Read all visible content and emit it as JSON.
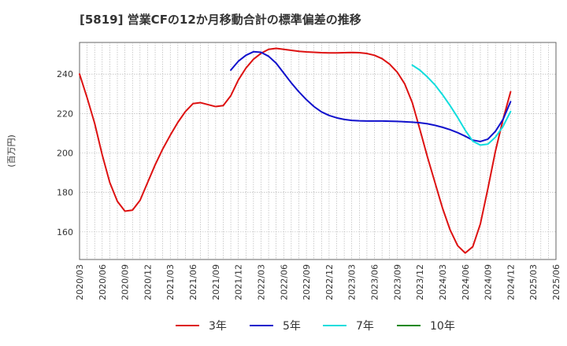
{
  "chart_data": {
    "type": "line",
    "title": "[5819]  営業CFの12か月移動合計の標準偏差の推移",
    "ylabel": "(百万円)",
    "xlabel": "",
    "ylim": [
      146,
      256
    ],
    "y_ticks": [
      160,
      180,
      200,
      220,
      240
    ],
    "x_tick_labels": [
      "2020/03",
      "2020/06",
      "2020/09",
      "2020/12",
      "2021/03",
      "2021/06",
      "2021/09",
      "2021/12",
      "2022/03",
      "2022/06",
      "2022/09",
      "2022/12",
      "2023/03",
      "2023/06",
      "2023/09",
      "2023/12",
      "2024/03",
      "2024/06",
      "2024/09",
      "2024/12",
      "2025/03",
      "2025/06"
    ],
    "grid": true,
    "legend_position": "bottom",
    "series": [
      {
        "name": "3年",
        "color": "#dd1111",
        "x": [
          "2020/03",
          "2020/04",
          "2020/05",
          "2020/06",
          "2020/07",
          "2020/08",
          "2020/09",
          "2020/10",
          "2020/11",
          "2020/12",
          "2021/01",
          "2021/02",
          "2021/03",
          "2021/04",
          "2021/05",
          "2021/06",
          "2021/07",
          "2021/08",
          "2021/09",
          "2021/10",
          "2021/11",
          "2021/12",
          "2022/01",
          "2022/02",
          "2022/03",
          "2022/04",
          "2022/05",
          "2022/06",
          "2022/07",
          "2022/08",
          "2022/09",
          "2022/10",
          "2022/11",
          "2022/12",
          "2023/01",
          "2023/02",
          "2023/03",
          "2023/04",
          "2023/05",
          "2023/06",
          "2023/07",
          "2023/08",
          "2023/09",
          "2023/10",
          "2023/11",
          "2023/12",
          "2024/01",
          "2024/02",
          "2024/03",
          "2024/04",
          "2024/05",
          "2024/06",
          "2024/07",
          "2024/08",
          "2024/09",
          "2024/10",
          "2024/11",
          "2024/12"
        ],
        "values": [
          240,
          228,
          215,
          199,
          185,
          175.5,
          170.5,
          171,
          176,
          185,
          194,
          202,
          209,
          215.5,
          221,
          225,
          225.5,
          224.5,
          223.5,
          224,
          229,
          237,
          243,
          247.5,
          250.5,
          252.5,
          253,
          252.5,
          252,
          251.5,
          251.2,
          251,
          250.8,
          250.7,
          250.7,
          250.8,
          250.9,
          250.8,
          250.4,
          249.5,
          247.8,
          245,
          241,
          235,
          225.5,
          212,
          198,
          185,
          172,
          161,
          153,
          149.3,
          152.5,
          164,
          182,
          201,
          217,
          231
        ]
      },
      {
        "name": "5年",
        "color": "#1111cc",
        "x": [
          "2021/11",
          "2021/12",
          "2022/01",
          "2022/02",
          "2022/03",
          "2022/04",
          "2022/05",
          "2022/06",
          "2022/07",
          "2022/08",
          "2022/09",
          "2022/10",
          "2022/11",
          "2022/12",
          "2023/01",
          "2023/02",
          "2023/03",
          "2023/04",
          "2023/05",
          "2023/06",
          "2023/07",
          "2023/08",
          "2023/09",
          "2023/10",
          "2023/11",
          "2023/12",
          "2024/01",
          "2024/02",
          "2024/03",
          "2024/04",
          "2024/05",
          "2024/06",
          "2024/07",
          "2024/08",
          "2024/09",
          "2024/10",
          "2024/11",
          "2024/12"
        ],
        "values": [
          242,
          246.5,
          249.5,
          251.3,
          251,
          249,
          245.5,
          240.5,
          235.5,
          231,
          227,
          223.5,
          220.8,
          219,
          217.8,
          217,
          216.5,
          216.3,
          216.2,
          216.2,
          216.2,
          216.1,
          216,
          215.8,
          215.6,
          215.3,
          214.8,
          214,
          213,
          211.8,
          210.3,
          208.5,
          206.5,
          205.8,
          207,
          211,
          217,
          226
        ]
      },
      {
        "name": "7年",
        "color": "#11dddd",
        "x": [
          "2023/11",
          "2023/12",
          "2024/01",
          "2024/02",
          "2024/03",
          "2024/04",
          "2024/05",
          "2024/06",
          "2024/07",
          "2024/08",
          "2024/09",
          "2024/10",
          "2024/11",
          "2024/12"
        ],
        "values": [
          244.5,
          242,
          238.5,
          234.5,
          229.5,
          224,
          218,
          211.5,
          206,
          204,
          204.5,
          208,
          213.5,
          221
        ]
      },
      {
        "name": "10年",
        "color": "#118811",
        "x": [],
        "values": []
      }
    ]
  }
}
